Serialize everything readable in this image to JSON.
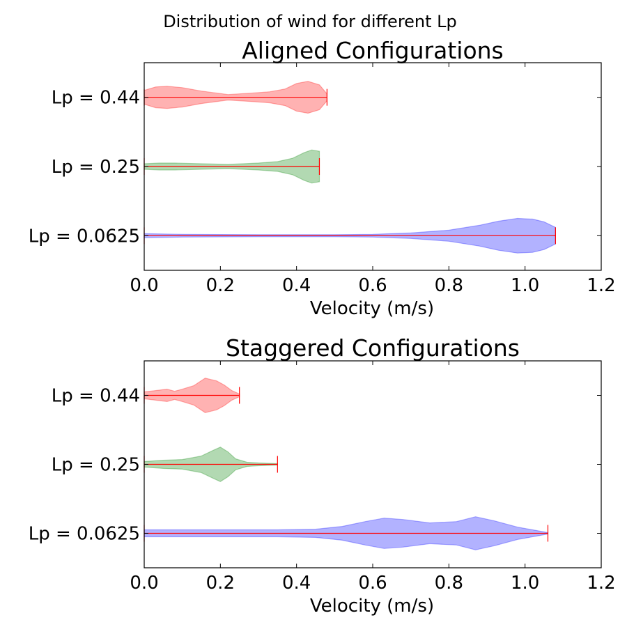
{
  "figure_title": "Distribution of wind for different Lp",
  "chart_data": [
    {
      "type": "violin",
      "orientation": "horizontal",
      "title": "Aligned Configurations",
      "xlabel": "Velocity (m/s)",
      "ylabel": "",
      "xlim": [
        0,
        1.2
      ],
      "xticks": [
        "0.0",
        "0.2",
        "0.4",
        "0.6",
        "0.8",
        "1.0",
        "1.2"
      ],
      "categories": [
        "Lp = 0.0625",
        "Lp = 0.25",
        "Lp = 0.44"
      ],
      "series": [
        {
          "category": "Lp = 0.44",
          "color": "#ff0000",
          "min": 0.0,
          "max": 0.48,
          "density": [
            [
              0.0,
              0.1
            ],
            [
              0.03,
              0.15
            ],
            [
              0.06,
              0.16
            ],
            [
              0.1,
              0.14
            ],
            [
              0.15,
              0.09
            ],
            [
              0.22,
              0.04
            ],
            [
              0.28,
              0.06
            ],
            [
              0.33,
              0.08
            ],
            [
              0.37,
              0.12
            ],
            [
              0.4,
              0.2
            ],
            [
              0.43,
              0.23
            ],
            [
              0.46,
              0.18
            ],
            [
              0.48,
              0.05
            ]
          ]
        },
        {
          "category": "Lp = 0.25",
          "color": "#008000",
          "min": 0.0,
          "max": 0.46,
          "density": [
            [
              0.0,
              0.04
            ],
            [
              0.04,
              0.05
            ],
            [
              0.08,
              0.05
            ],
            [
              0.15,
              0.04
            ],
            [
              0.22,
              0.03
            ],
            [
              0.3,
              0.05
            ],
            [
              0.35,
              0.07
            ],
            [
              0.39,
              0.12
            ],
            [
              0.42,
              0.2
            ],
            [
              0.44,
              0.24
            ],
            [
              0.46,
              0.22
            ]
          ]
        },
        {
          "category": "Lp = 0.0625",
          "color": "#0000ff",
          "min": 0.0,
          "max": 1.08,
          "density": [
            [
              0.0,
              0.03
            ],
            [
              0.1,
              0.02
            ],
            [
              0.3,
              0.015
            ],
            [
              0.5,
              0.015
            ],
            [
              0.6,
              0.02
            ],
            [
              0.7,
              0.04
            ],
            [
              0.8,
              0.08
            ],
            [
              0.88,
              0.15
            ],
            [
              0.93,
              0.21
            ],
            [
              0.98,
              0.25
            ],
            [
              1.02,
              0.24
            ],
            [
              1.05,
              0.2
            ],
            [
              1.08,
              0.12
            ]
          ]
        }
      ]
    },
    {
      "type": "violin",
      "orientation": "horizontal",
      "title": "Staggered Configurations",
      "xlabel": "Velocity (m/s)",
      "ylabel": "",
      "xlim": [
        0,
        1.2
      ],
      "xticks": [
        "0.0",
        "0.2",
        "0.4",
        "0.6",
        "0.8",
        "1.0",
        "1.2"
      ],
      "categories": [
        "Lp = 0.0625",
        "Lp = 0.25",
        "Lp = 0.44"
      ],
      "series": [
        {
          "category": "Lp = 0.44",
          "color": "#ff0000",
          "min": 0.0,
          "max": 0.25,
          "density": [
            [
              0.0,
              0.05
            ],
            [
              0.03,
              0.07
            ],
            [
              0.06,
              0.09
            ],
            [
              0.08,
              0.06
            ],
            [
              0.1,
              0.09
            ],
            [
              0.13,
              0.14
            ],
            [
              0.16,
              0.25
            ],
            [
              0.19,
              0.21
            ],
            [
              0.21,
              0.15
            ],
            [
              0.23,
              0.07
            ],
            [
              0.25,
              0.02
            ]
          ]
        },
        {
          "category": "Lp = 0.25",
          "color": "#008000",
          "min": 0.0,
          "max": 0.35,
          "density": [
            [
              0.0,
              0.04
            ],
            [
              0.05,
              0.06
            ],
            [
              0.1,
              0.07
            ],
            [
              0.15,
              0.12
            ],
            [
              0.18,
              0.2
            ],
            [
              0.2,
              0.25
            ],
            [
              0.22,
              0.18
            ],
            [
              0.24,
              0.08
            ],
            [
              0.27,
              0.03
            ],
            [
              0.3,
              0.02
            ],
            [
              0.35,
              0.01
            ]
          ]
        },
        {
          "category": "Lp = 0.0625",
          "color": "#0000ff",
          "min": 0.0,
          "max": 1.06,
          "density": [
            [
              0.0,
              0.05
            ],
            [
              0.2,
              0.05
            ],
            [
              0.35,
              0.05
            ],
            [
              0.45,
              0.06
            ],
            [
              0.52,
              0.1
            ],
            [
              0.58,
              0.17
            ],
            [
              0.63,
              0.22
            ],
            [
              0.68,
              0.2
            ],
            [
              0.75,
              0.15
            ],
            [
              0.82,
              0.17
            ],
            [
              0.87,
              0.24
            ],
            [
              0.92,
              0.18
            ],
            [
              0.98,
              0.09
            ],
            [
              1.03,
              0.04
            ],
            [
              1.06,
              0.01
            ]
          ]
        }
      ]
    }
  ]
}
